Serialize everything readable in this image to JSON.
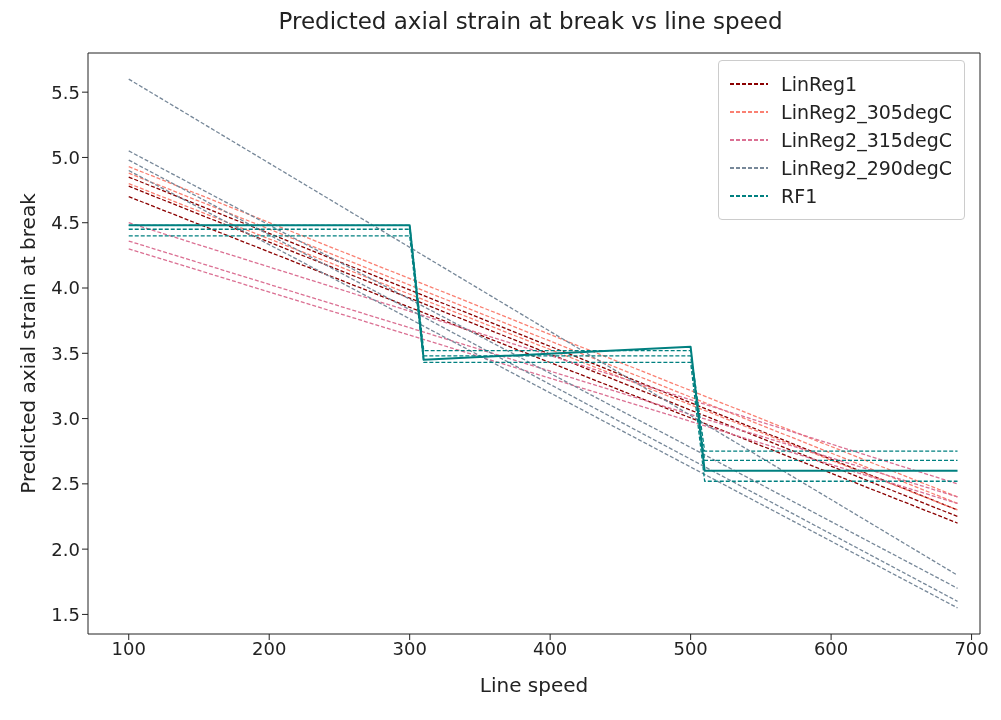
{
  "chart_data": {
    "type": "line",
    "title": "Predicted axial strain at break vs line speed",
    "xlabel": "Line speed",
    "ylabel": "Predicted axial strain at break",
    "xlim": [
      71,
      706
    ],
    "xticks": [
      100,
      200,
      300,
      400,
      500,
      600,
      700
    ],
    "ylim": [
      1.35,
      5.8
    ],
    "yticks": [
      1.5,
      {
        "value": 2,
        "label": "2.0"
      },
      2.5,
      {
        "value": 3,
        "label": "3.0"
      },
      3.5,
      {
        "value": 4,
        "label": "4.0"
      },
      4.5,
      {
        "value": 5,
        "label": "5.0"
      },
      5.5
    ],
    "legend": "top right",
    "line_style": "dashed",
    "marker": "none",
    "series": [
      {
        "name": "LinReg1",
        "color": "#8b0000",
        "x": [
          100,
          690
        ],
        "values": [
          4.85,
          2.3
        ]
      },
      {
        "color": "#8b0000",
        "x": [
          100,
          690
        ],
        "values": [
          4.78,
          2.25
        ]
      },
      {
        "color": "#8b0000",
        "x": [
          100,
          690
        ],
        "values": [
          4.7,
          2.2
        ]
      },
      {
        "name": "LinReg2_305degC",
        "color": "#fa8072",
        "x": [
          100,
          690
        ],
        "values": [
          4.93,
          2.4
        ]
      },
      {
        "color": "#fa8072",
        "x": [
          100,
          690
        ],
        "values": [
          4.88,
          2.35
        ]
      },
      {
        "color": "#fa8072",
        "x": [
          100,
          690
        ],
        "values": [
          4.8,
          2.3
        ]
      },
      {
        "name": "LinReg2_315degC",
        "color": "#db7093",
        "x": [
          100,
          690
        ],
        "values": [
          4.5,
          2.5
        ]
      },
      {
        "color": "#db7093",
        "x": [
          100,
          690
        ],
        "values": [
          4.36,
          2.4
        ]
      },
      {
        "color": "#db7093",
        "x": [
          100,
          690
        ],
        "values": [
          4.3,
          2.35
        ]
      },
      {
        "name": "LinReg2_290degC",
        "color": "#778899",
        "x": [
          100,
          690
        ],
        "values": [
          5.6,
          1.8
        ]
      },
      {
        "color": "#778899",
        "x": [
          100,
          690
        ],
        "values": [
          5.05,
          1.7
        ]
      },
      {
        "color": "#778899",
        "x": [
          100,
          690
        ],
        "values": [
          4.98,
          1.6
        ]
      },
      {
        "color": "#778899",
        "x": [
          100,
          690
        ],
        "values": [
          4.9,
          1.55
        ]
      },
      {
        "name": "RF1",
        "color": "#008080",
        "x": [
          100,
          300,
          310,
          500,
          510,
          690
        ],
        "values": [
          4.48,
          4.48,
          3.52,
          3.52,
          2.75,
          2.75
        ]
      },
      {
        "color": "#008080",
        "x": [
          100,
          300,
          310,
          500,
          510,
          690
        ],
        "values": [
          4.45,
          4.45,
          3.48,
          3.48,
          2.68,
          2.68
        ]
      },
      {
        "color": "#008080",
        "x": [
          100,
          300,
          310,
          500,
          510,
          690
        ],
        "values": [
          4.4,
          4.4,
          3.43,
          3.43,
          2.52,
          2.52
        ]
      },
      {
        "color": "#008080",
        "x": [
          100,
          300,
          310,
          500,
          510,
          690
        ],
        "values": [
          4.48,
          4.48,
          3.45,
          3.55,
          2.6,
          2.6
        ],
        "line_style": "solid"
      }
    ]
  }
}
